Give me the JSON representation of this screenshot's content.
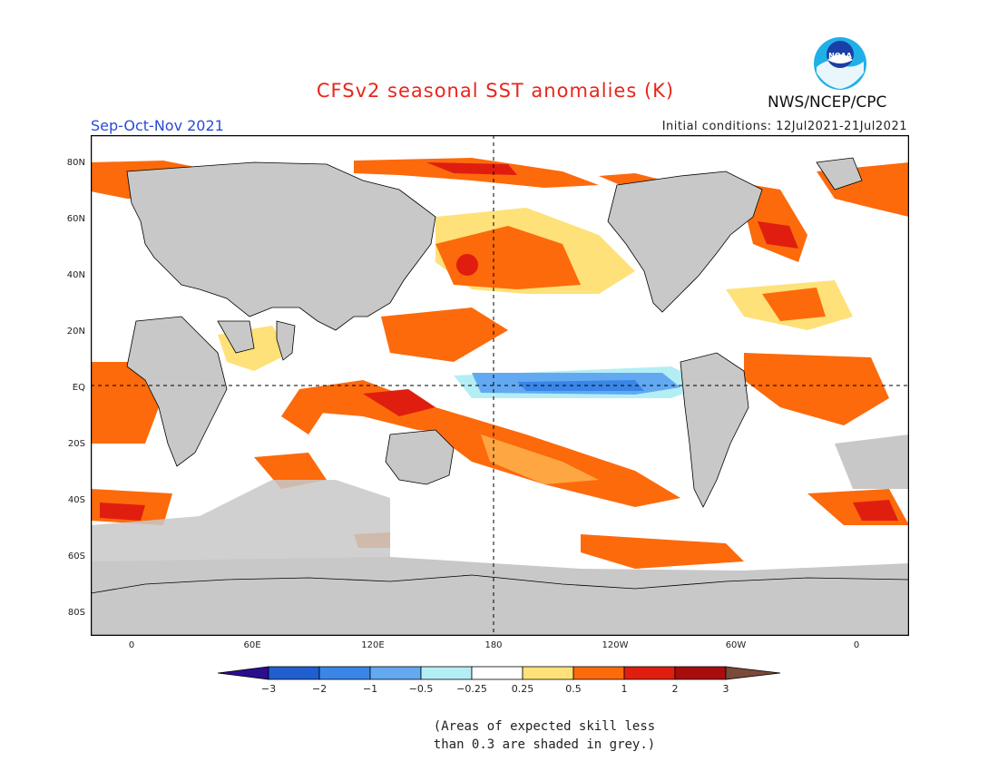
{
  "header": {
    "title": "CFSv2 seasonal SST anomalies (K)",
    "agency": "NWS/NCEP/CPC",
    "logo_text": "NOAA",
    "season": "Sep-Oct-Nov 2021",
    "initial_conditions": "Initial conditions: 12Jul2021-21Jul2021"
  },
  "map": {
    "projection": "cylindrical equidistant",
    "land_color": "#c8c8c8",
    "ocean_background": "#ffffff",
    "reference_lines": [
      "EQ",
      "180"
    ],
    "lat_labels": [
      "80N",
      "60N",
      "40N",
      "20N",
      "EQ",
      "20S",
      "40S",
      "60S",
      "80S"
    ],
    "lon_labels": [
      "0",
      "60E",
      "120E",
      "180",
      "120W",
      "60W",
      "0"
    ]
  },
  "colorbar": {
    "labels": [
      "-3",
      "-2",
      "-1",
      "-0.5",
      "-0.25",
      "0.25",
      "0.5",
      "1",
      "2",
      "3"
    ],
    "colors": [
      "#2b0d8f",
      "#1f5fcf",
      "#3a86e8",
      "#63a9f2",
      "#b4eef5",
      "#ffffff",
      "#fee178",
      "#fc6a0c",
      "#e01e0f",
      "#a80d0d",
      "#7a4a3a"
    ]
  },
  "note": {
    "line1": "(Areas of expected skill less",
    "line2": "than 0.3 are shaded in grey.)"
  }
}
